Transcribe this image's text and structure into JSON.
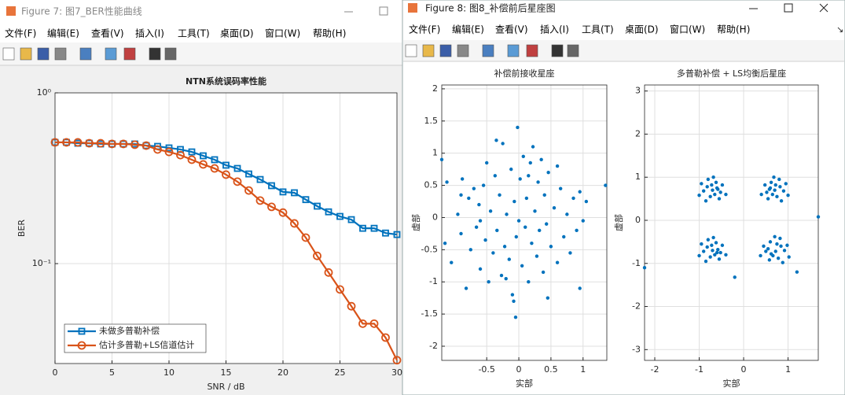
{
  "windows": [
    {
      "title": "Figure 7: 图7_BER性能曲线",
      "menu": [
        "文件(F)",
        "编辑(E)",
        "查看(V)",
        "插入(I)",
        "工具(T)",
        "桌面(D)",
        "窗口(W)",
        "帮助(H)"
      ]
    },
    {
      "title": "Figure 8: 图8_补偿前后星座图",
      "menu": [
        "文件(F)",
        "编辑(E)",
        "查看(V)",
        "插入(I)",
        "工具(T)",
        "桌面(D)",
        "窗口(W)",
        "帮助(H)"
      ]
    }
  ],
  "chart_data": [
    {
      "type": "line",
      "title": "NTN系统误码率性能",
      "xlabel": "SNR / dB",
      "ylabel": "BER",
      "x": [
        0,
        1,
        2,
        3,
        4,
        5,
        6,
        7,
        8,
        9,
        10,
        11,
        12,
        13,
        14,
        15,
        16,
        17,
        18,
        19,
        20,
        21,
        22,
        23,
        24,
        25,
        26,
        27,
        28,
        29,
        30
      ],
      "xlim": [
        0,
        30
      ],
      "xticks": [
        0,
        5,
        10,
        15,
        20,
        25,
        30
      ],
      "ylim": [
        0.026,
        1
      ],
      "yticks": [
        {
          "value": 0.1,
          "label": "10⁻¹"
        },
        {
          "value": 1,
          "label": "10⁰"
        }
      ],
      "log_y": true,
      "grid": true,
      "legend": "lower left",
      "series": [
        {
          "name": "未做多普勒补偿",
          "color": "#0072BD",
          "marker": "square",
          "values": [
            0.513,
            0.513,
            0.507,
            0.507,
            0.502,
            0.502,
            0.502,
            0.502,
            0.491,
            0.486,
            0.476,
            0.466,
            0.451,
            0.428,
            0.406,
            0.377,
            0.361,
            0.335,
            0.311,
            0.286,
            0.263,
            0.26,
            0.237,
            0.217,
            0.201,
            0.189,
            0.181,
            0.161,
            0.161,
            0.151,
            0.148
          ]
        },
        {
          "name": "估计多普勒+LS信道估计",
          "color": "#D95319",
          "marker": "circle",
          "values": [
            0.513,
            0.513,
            0.513,
            0.507,
            0.507,
            0.502,
            0.502,
            0.497,
            0.491,
            0.466,
            0.451,
            0.432,
            0.406,
            0.381,
            0.361,
            0.332,
            0.302,
            0.268,
            0.234,
            0.215,
            0.199,
            0.172,
            0.142,
            0.111,
            0.0887,
            0.0706,
            0.0563,
            0.0445,
            0.0445,
            0.0369,
            0.0272
          ]
        }
      ]
    },
    {
      "type": "scatter",
      "title": "补偿前接收星座",
      "xlabel": "实部",
      "ylabel": "虚部",
      "color": "#0072BD",
      "grid": true,
      "xlim": [
        -1.2,
        1.37
      ],
      "xticks": [
        -0.5,
        0,
        0.5,
        1
      ],
      "ylim": [
        -2.22,
        2.06
      ],
      "yticks": [
        -2,
        -1.5,
        -1,
        -0.5,
        0,
        0.5,
        1,
        1.5,
        2
      ],
      "x": [
        -1.2,
        -1.15,
        -1.12,
        -1.05,
        -0.95,
        -0.9,
        -0.88,
        -0.82,
        -0.78,
        -0.75,
        -0.7,
        -0.66,
        -0.62,
        -0.6,
        -0.55,
        -0.52,
        -0.5,
        -0.47,
        -0.44,
        -0.4,
        -0.37,
        -0.34,
        -0.3,
        -0.27,
        -0.25,
        -0.22,
        -0.19,
        -0.15,
        -0.12,
        -0.1,
        -0.07,
        -0.04,
        -0.02,
        0.0,
        0.02,
        0.05,
        0.07,
        0.1,
        0.12,
        0.15,
        0.18,
        0.2,
        0.22,
        0.25,
        0.28,
        0.3,
        0.32,
        0.35,
        0.38,
        0.4,
        0.43,
        0.46,
        0.5,
        0.55,
        0.6,
        0.65,
        0.7,
        0.75,
        0.8,
        0.85,
        0.9,
        0.95,
        1.0,
        1.05,
        0.95,
        1.35,
        -0.05,
        -0.08,
        -0.35,
        0.45,
        -0.6,
        0.6,
        -0.9,
        0.15,
        -0.2
      ],
      "y": [
        0.9,
        -0.4,
        0.55,
        -0.7,
        0.05,
        -0.25,
        0.6,
        -1.1,
        0.3,
        -0.5,
        0.45,
        -0.15,
        0.2,
        -0.8,
        0.5,
        -0.35,
        0.85,
        -1.0,
        0.1,
        -0.55,
        0.65,
        -0.2,
        0.35,
        -0.9,
        1.15,
        -0.45,
        0.05,
        -0.65,
        0.75,
        -1.2,
        0.25,
        -0.3,
        1.4,
        -0.05,
        0.6,
        -0.75,
        0.95,
        -0.15,
        0.3,
        -1.0,
        0.85,
        -0.4,
        1.1,
        0.1,
        -0.6,
        0.55,
        -0.2,
        0.9,
        -0.85,
        0.35,
        -0.1,
        0.7,
        -0.45,
        0.15,
        -0.7,
        0.45,
        -0.3,
        0.05,
        -0.55,
        0.3,
        -0.2,
        0.4,
        -0.05,
        0.25,
        -1.1,
        0.5,
        -1.55,
        -1.3,
        1.2,
        -1.25,
        -0.05,
        0.8,
        0.35,
        0.65,
        -0.95
      ]
    },
    {
      "type": "scatter",
      "title": "多普勒补偿 + LS均衡后星座",
      "xlabel": "实部",
      "ylabel": "虚部",
      "color": "#0072BD",
      "grid": true,
      "xlim": [
        -2.23,
        1.68
      ],
      "xticks": [
        -2,
        -1,
        0,
        1
      ],
      "ylim": [
        -3.25,
        3.14
      ],
      "yticks": [
        -3,
        -2,
        -1,
        0,
        1,
        2,
        3
      ],
      "x": [
        -0.7,
        -0.6,
        -0.82,
        -0.65,
        -0.75,
        -0.52,
        -0.9,
        -0.62,
        -0.8,
        -0.48,
        -0.95,
        -0.55,
        -0.85,
        -0.4,
        -0.68,
        -1.0,
        -0.58,
        -0.72,
        0.7,
        0.6,
        0.82,
        0.65,
        0.75,
        0.52,
        0.9,
        0.62,
        0.8,
        0.48,
        0.95,
        0.55,
        0.85,
        0.4,
        0.68,
        1.0,
        0.58,
        0.72,
        -0.7,
        -0.6,
        -0.82,
        -0.65,
        -0.75,
        -0.52,
        -0.9,
        -0.62,
        -0.8,
        -0.48,
        -0.95,
        -0.55,
        -0.85,
        -0.4,
        -0.68,
        -1.0,
        -0.58,
        -0.72,
        0.72,
        0.62,
        0.84,
        0.66,
        0.78,
        0.5,
        0.92,
        0.6,
        0.82,
        0.45,
        0.98,
        0.58,
        0.88,
        0.38,
        0.7,
        1.02,
        0.55,
        0.75,
        -2.23,
        1.68,
        1.2,
        -0.2
      ],
      "y": [
        0.7,
        0.75,
        0.78,
        0.6,
        0.55,
        0.65,
        0.68,
        0.88,
        0.95,
        0.82,
        0.85,
        0.5,
        0.45,
        0.6,
        1.0,
        0.58,
        0.72,
        0.82,
        0.7,
        0.75,
        0.78,
        0.6,
        0.55,
        0.65,
        0.68,
        0.88,
        0.95,
        0.82,
        0.85,
        0.5,
        0.45,
        0.6,
        1.0,
        0.58,
        0.72,
        0.82,
        -0.7,
        -0.75,
        -0.62,
        -0.8,
        -0.85,
        -0.75,
        -0.72,
        -0.52,
        -0.45,
        -0.58,
        -0.55,
        -0.9,
        -0.95,
        -0.8,
        -0.4,
        -0.82,
        -0.68,
        -0.58,
        -0.72,
        -0.78,
        -0.6,
        -0.82,
        -0.88,
        -0.72,
        -0.7,
        -0.5,
        -0.42,
        -0.6,
        -0.58,
        -0.92,
        -0.98,
        -0.82,
        -0.38,
        -0.85,
        -0.66,
        -0.55,
        -1.1,
        0.08,
        -1.2,
        -1.32
      ]
    }
  ]
}
